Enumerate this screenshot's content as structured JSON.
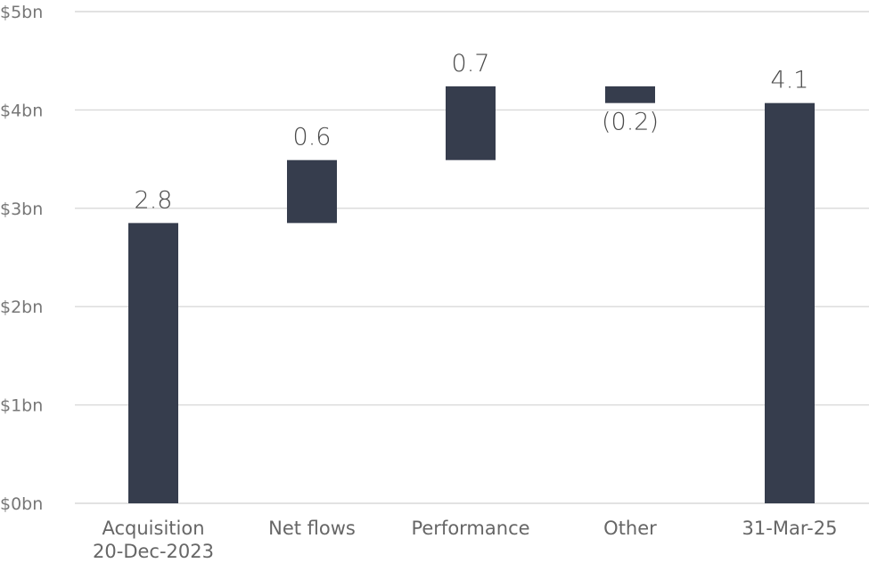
{
  "chart_data": {
    "type": "bar",
    "subtype": "waterfall",
    "categories": [
      [
        "Acquisition",
        "20-Dec-2023"
      ],
      [
        "Net flows"
      ],
      [
        "Performance"
      ],
      [
        "Other"
      ],
      [
        "31-Mar-25"
      ]
    ],
    "values": [
      2.85,
      0.64,
      0.75,
      -0.17,
      4.07
    ],
    "kinds": [
      "total",
      "delta",
      "delta",
      "delta",
      "total"
    ],
    "data_labels": [
      "2.8",
      "0.6",
      "0.7",
      "(0.2)",
      "4.1"
    ],
    "y_ticks": [
      {
        "value": 0,
        "label": "$0bn"
      },
      {
        "value": 1,
        "label": "$1bn"
      },
      {
        "value": 2,
        "label": "$2bn"
      },
      {
        "value": 3,
        "label": "$3bn"
      },
      {
        "value": 4,
        "label": "$4bn"
      },
      {
        "value": 5,
        "label": "$5bn"
      }
    ],
    "ylim": [
      0,
      5
    ],
    "grid": true,
    "bar_color": "#363d4d",
    "title": "",
    "xlabel": "",
    "ylabel": ""
  }
}
